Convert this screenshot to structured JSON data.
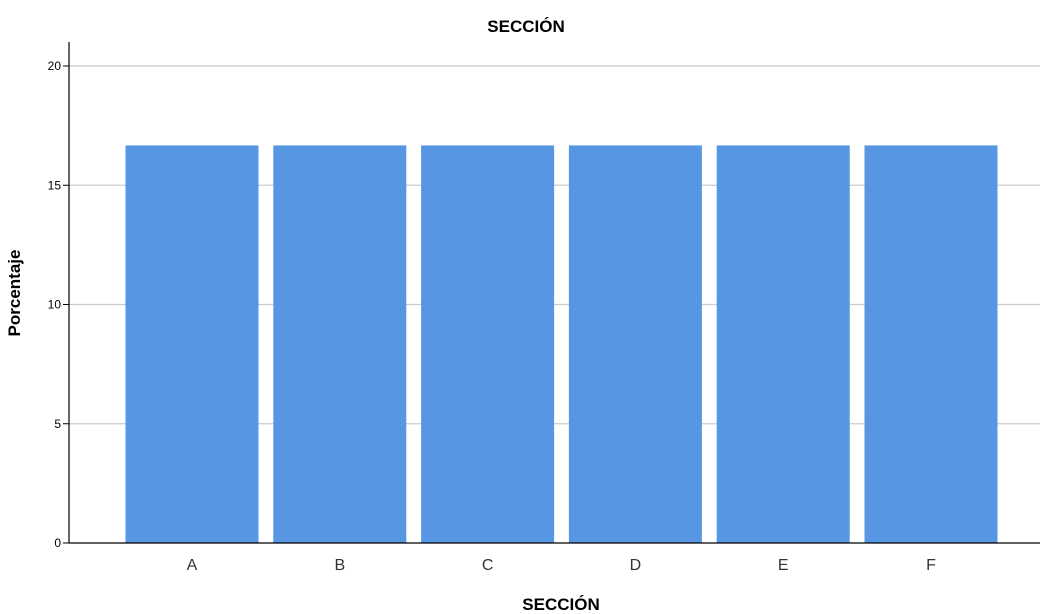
{
  "chart_data": {
    "type": "bar",
    "title": "SECCIÓN",
    "xlabel": "SECCIÓN",
    "ylabel": "Porcentaje",
    "categories": [
      "A",
      "B",
      "C",
      "D",
      "E",
      "F"
    ],
    "values": [
      16.67,
      16.67,
      16.67,
      16.67,
      16.67,
      16.67
    ],
    "ylim": [
      0,
      21
    ],
    "yticks": [
      "0",
      "5",
      "10",
      "15",
      "20"
    ],
    "grid": true,
    "bar_color": "#5696E3",
    "grid_color": "#CBCBCB",
    "axis_color": "#000000"
  }
}
